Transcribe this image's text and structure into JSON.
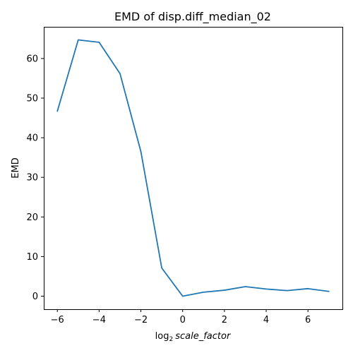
{
  "chart_data": {
    "type": "line",
    "title": "EMD of disp.diff_median_02",
    "xlabel_base": "log",
    "xlabel_subscript": "2",
    "xlabel_var": "scale_factor",
    "ylabel": "EMD",
    "xlim": [
      -6.65,
      7.65
    ],
    "ylim": [
      -3.3,
      68
    ],
    "xticks": [
      -6,
      -4,
      -2,
      0,
      2,
      4,
      6
    ],
    "xtick_labels": [
      "−6",
      "−4",
      "−2",
      "0",
      "2",
      "4",
      "6"
    ],
    "yticks": [
      0,
      10,
      20,
      30,
      40,
      50,
      60
    ],
    "ytick_labels": [
      "0",
      "10",
      "20",
      "30",
      "40",
      "50",
      "60"
    ],
    "grid": false,
    "series": [
      {
        "color": "#1f77b4",
        "x": [
          -6,
          -5,
          -4,
          -3,
          -2,
          -1,
          0,
          1,
          2,
          3,
          4,
          5,
          6,
          7
        ],
        "y": [
          46.7,
          64.7,
          64.1,
          56.2,
          36.5,
          7.1,
          0.0,
          1.0,
          1.5,
          2.4,
          1.8,
          1.4,
          1.9,
          1.2
        ]
      }
    ]
  }
}
